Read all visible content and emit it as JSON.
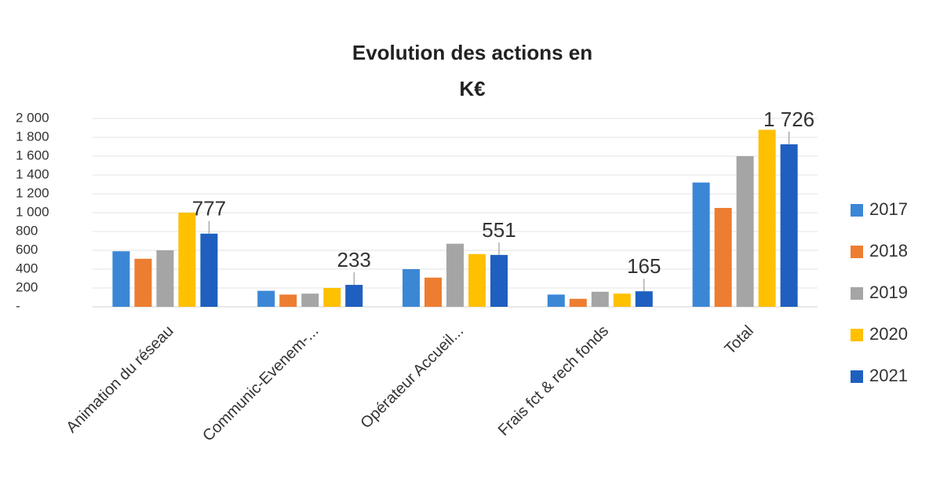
{
  "chart_data": {
    "type": "bar",
    "title": "Evolution des actions en K€",
    "categories": [
      "Animation du réseau",
      "Communic-Evenem-...",
      "Opérateur Accueil...",
      "Frais fct & rech fonds",
      "Total"
    ],
    "series": [
      {
        "name": "2017",
        "color": "#3b87d6",
        "values": [
          590,
          170,
          400,
          130,
          1320
        ]
      },
      {
        "name": "2018",
        "color": "#ed7d31",
        "values": [
          510,
          130,
          310,
          85,
          1050
        ]
      },
      {
        "name": "2019",
        "color": "#a5a5a5",
        "values": [
          600,
          140,
          670,
          160,
          1600
        ]
      },
      {
        "name": "2020",
        "color": "#ffc000",
        "values": [
          1000,
          200,
          560,
          140,
          1880
        ]
      },
      {
        "name": "2021",
        "color": "#1f5fbf",
        "values": [
          777,
          233,
          551,
          165,
          1726
        ],
        "value_labels": [
          "777",
          "233",
          "551",
          "165",
          "1 726"
        ]
      }
    ],
    "ylim": [
      0,
      2000
    ],
    "yticks": [
      {
        "value": 0,
        "label": "-"
      },
      200,
      400,
      600,
      800,
      {
        "value": 1000,
        "label": "1 000"
      },
      {
        "value": 1200,
        "label": "1 200"
      },
      {
        "value": 1400,
        "label": "1 400"
      },
      {
        "value": 1600,
        "label": "1 600"
      },
      {
        "value": 1800,
        "label": "1 800"
      },
      {
        "value": 2000,
        "label": "2 000"
      }
    ],
    "grid": true,
    "legend": "right"
  }
}
